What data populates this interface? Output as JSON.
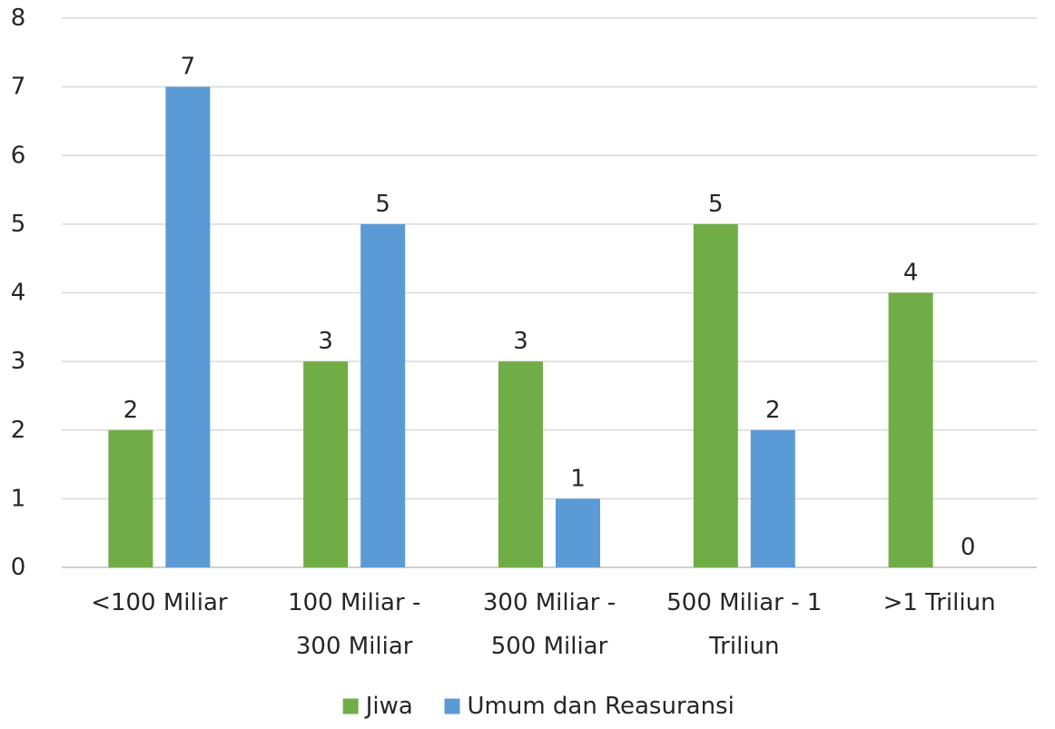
{
  "chart_data": {
    "type": "bar",
    "categories": [
      [
        "<100 Miliar"
      ],
      [
        "100 Miliar -",
        "300 Miliar"
      ],
      [
        "300 Miliar -",
        "500 Miliar"
      ],
      [
        "500 Miliar - 1",
        "Triliun"
      ],
      [
        ">1 Triliun"
      ]
    ],
    "series": [
      {
        "name": "Jiwa",
        "color": "#70ad47",
        "values": [
          2,
          3,
          3,
          5,
          4
        ]
      },
      {
        "name": "Umum dan Reasuransi",
        "color": "#5b9bd5",
        "values": [
          7,
          5,
          1,
          2,
          0
        ]
      }
    ],
    "yticks": [
      "0",
      "1",
      "2",
      "3",
      "4",
      "5",
      "6",
      "7",
      "8"
    ],
    "ylim": [
      0,
      8
    ],
    "grid": true,
    "legend_position": "bottom",
    "title": "",
    "xlabel": "",
    "ylabel": ""
  }
}
